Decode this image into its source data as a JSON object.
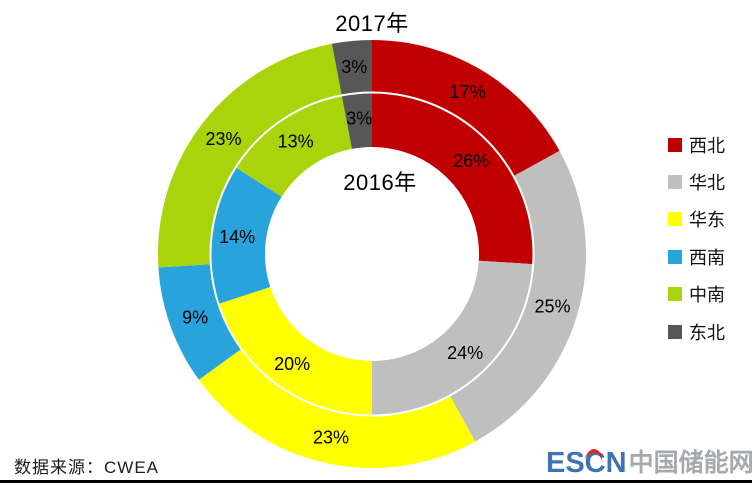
{
  "chart_data": {
    "type": "donut",
    "categories": [
      "西北",
      "华北",
      "华东",
      "西南",
      "中南",
      "东北"
    ],
    "colors": [
      "#C00000",
      "#BFBFBF",
      "#FFFF00",
      "#29A3DC",
      "#A9D40B",
      "#575757"
    ],
    "series": [
      {
        "name": "2017年",
        "ring": "outer",
        "values": [
          17,
          25,
          23,
          9,
          23,
          3
        ]
      },
      {
        "name": "2016年",
        "ring": "inner",
        "values": [
          26,
          24,
          20,
          14,
          13,
          3
        ]
      }
    ],
    "label_suffix": "%",
    "label_color": "#000000",
    "legend_position": "right",
    "start_angle_deg": 0,
    "direction": "clockwise",
    "grid": false
  },
  "titles": {
    "outer_ring": "2017年",
    "inner_ring": "2016年"
  },
  "footer": {
    "source": "数据来源：CWEA"
  },
  "branding": {
    "logo_en": "ESCN",
    "logo_cn": "中国储能网",
    "logo_en_color": "#3F73B2",
    "logo_cn_color": "#A6A9AD",
    "logo_accent_color": "#D92B1F"
  }
}
